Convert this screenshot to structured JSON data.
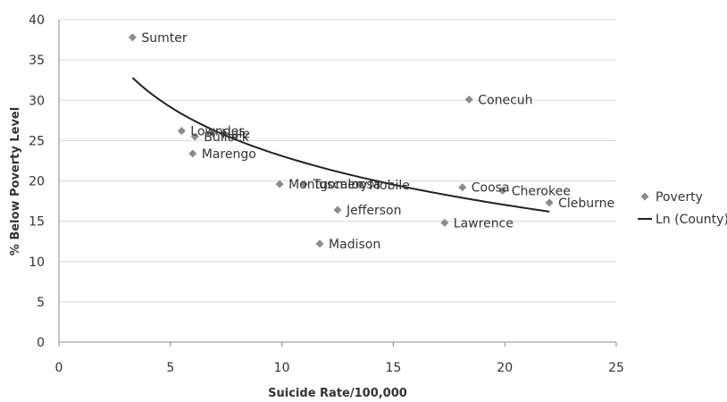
{
  "chart_data": {
    "type": "scatter",
    "title": "",
    "xlabel": "Suicide Rate/100,000",
    "ylabel": "% Below Poverty Level",
    "xlim": [
      0,
      25
    ],
    "ylim": [
      0,
      40
    ],
    "xticks": [
      "0",
      "5",
      "10",
      "15",
      "20",
      "25"
    ],
    "yticks": [
      "0",
      "5",
      "10",
      "15",
      "20",
      "25",
      "30",
      "35",
      "40"
    ],
    "grid": "horizontal",
    "legend": "right",
    "series": [
      {
        "name": "Poverty",
        "marker": "diamond",
        "color": "#8c8c8c",
        "points": [
          {
            "label": "Sumter",
            "x": 3.3,
            "y": 37.8
          },
          {
            "label": "Conecuh",
            "x": 18.4,
            "y": 30.1
          },
          {
            "label": "Lowndes",
            "x": 5.5,
            "y": 26.2
          },
          {
            "label": "Hale",
            "x": 6.9,
            "y": 25.9
          },
          {
            "label": "Bullock",
            "x": 6.1,
            "y": 25.5
          },
          {
            "label": "Marengo",
            "x": 6.0,
            "y": 23.4
          },
          {
            "label": "Montgomery",
            "x": 9.9,
            "y": 19.6
          },
          {
            "label": "Tuscaloosa",
            "x": 11.0,
            "y": 19.6
          },
          {
            "label": "Mobile",
            "x": 13.5,
            "y": 19.5
          },
          {
            "label": "Coosa",
            "x": 18.1,
            "y": 19.2
          },
          {
            "label": "Cherokee",
            "x": 19.9,
            "y": 18.8
          },
          {
            "label": "Cleburne",
            "x": 22.0,
            "y": 17.3
          },
          {
            "label": "Jefferson",
            "x": 12.5,
            "y": 16.4
          },
          {
            "label": "Lawrence",
            "x": 17.3,
            "y": 14.8
          },
          {
            "label": "Madison",
            "x": 11.7,
            "y": 12.2
          }
        ]
      },
      {
        "name": "Ln (County)",
        "type": "line",
        "color": "#222222",
        "fit": "logarithmic",
        "x_range": [
          3.3,
          22.0
        ],
        "a": 43.24,
        "b": -8.75
      }
    ]
  }
}
